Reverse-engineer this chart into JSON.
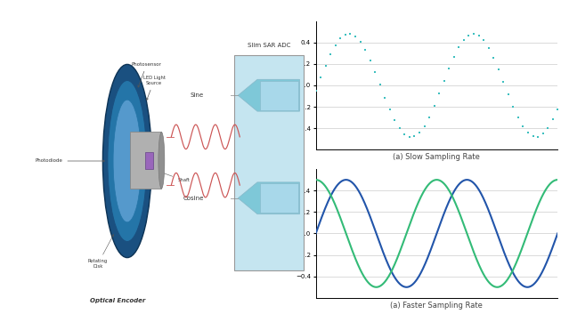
{
  "background_color": "#ffffff",
  "fig_width": 6.39,
  "fig_height": 3.62,
  "slow_plot": {
    "caption": "(a) Slow Sampling Rate",
    "ylim": [
      -0.6,
      0.6
    ],
    "yticks": [
      -0.4,
      -0.2,
      0.0,
      0.2,
      0.4
    ],
    "dot_color": "#3dbfbf",
    "dot_size": 4
  },
  "fast_plot": {
    "caption": "(a) Faster Sampling Rate",
    "ylim": [
      -0.6,
      0.6
    ],
    "yticks": [
      -0.4,
      -0.2,
      0.0,
      0.2,
      0.4
    ],
    "sine_color": "#2255aa",
    "cosine_color": "#33bb77",
    "line_width": 1.5
  },
  "adc_box": {
    "title": "Slim SAR ADC",
    "label_sine": "Sine",
    "label_cosine": "Cosine",
    "box_color": "#c5e5f0",
    "border_color": "#999999",
    "funnel_color": "#7ec8d8",
    "inner_color": "#a8d8ea"
  },
  "wave_color": "#cc5555"
}
